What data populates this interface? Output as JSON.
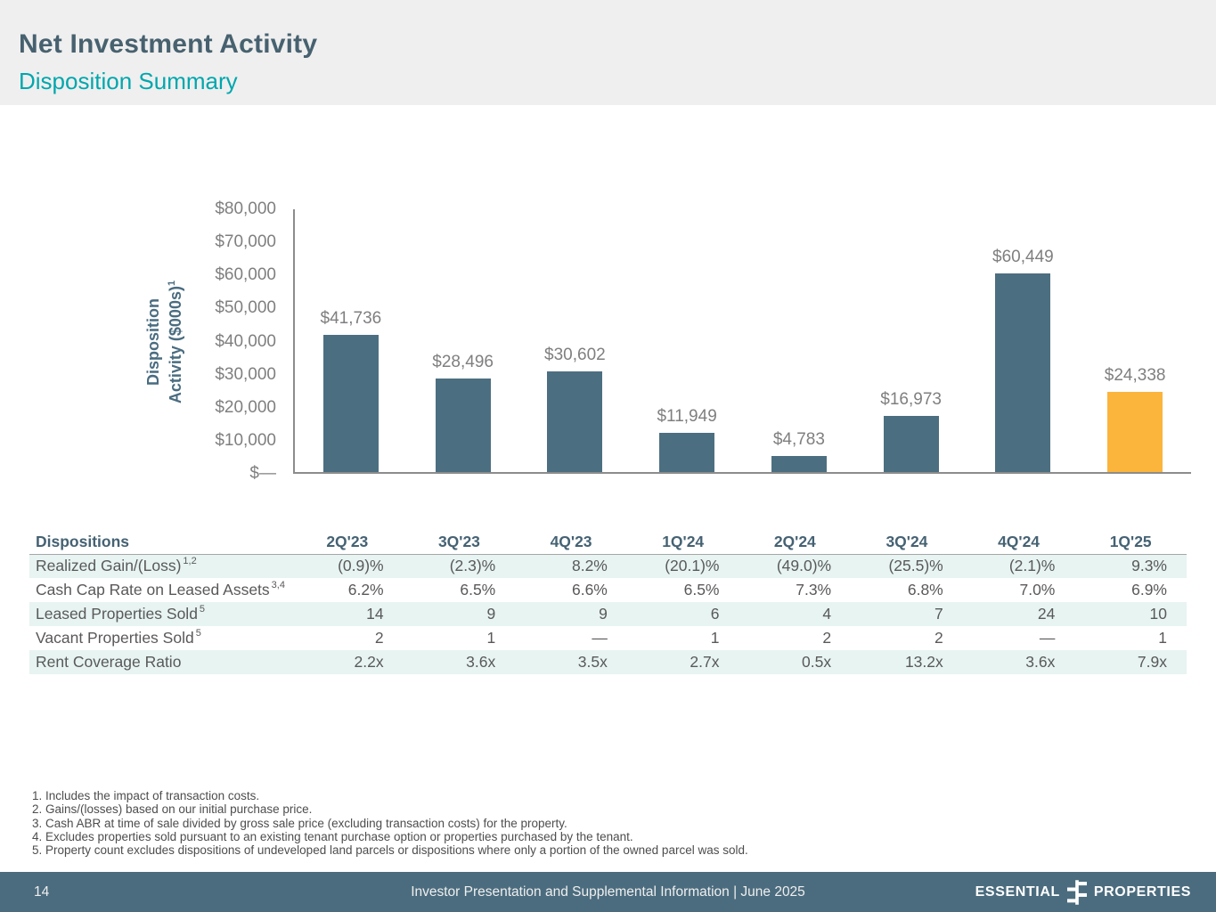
{
  "header": {
    "title": "Net Investment Activity",
    "subtitle": "Disposition Summary"
  },
  "chart_data": {
    "type": "bar",
    "ylabel": "Disposition Activity ($000s)",
    "ylabel_lines": [
      "Disposition",
      "Activity ($000s)"
    ],
    "ylabel_footnote_ref": "1",
    "categories": [
      "2Q'23",
      "3Q'23",
      "4Q'23",
      "1Q'24",
      "2Q'24",
      "3Q'24",
      "4Q'24",
      "1Q'25"
    ],
    "values": [
      41736,
      28496,
      30602,
      11949,
      4783,
      16973,
      60449,
      24338
    ],
    "value_labels": [
      "$41,736",
      "$28,496",
      "$30,602",
      "$11,949",
      "$4,783",
      "$16,973",
      "$60,449",
      "$24,338"
    ],
    "ylim": [
      0,
      80000
    ],
    "ytick_labels": [
      "$80,000",
      "$70,000",
      "$60,000",
      "$50,000",
      "$40,000",
      "$30,000",
      "$20,000",
      "$10,000",
      "$—"
    ],
    "grid": "off",
    "legend": "none",
    "bar_color": "#4C6E81",
    "highlight_bar_color": "#FBB43C",
    "highlight_index": 7
  },
  "table": {
    "title": "Dispositions",
    "columns": [
      "2Q'23",
      "3Q'23",
      "4Q'23",
      "1Q'24",
      "2Q'24",
      "3Q'24",
      "4Q'24",
      "1Q'25"
    ],
    "rows": [
      {
        "label": "Realized Gain/(Loss)",
        "superscript": "1,2",
        "values": [
          "(0.9)%",
          "(2.3)%",
          "8.2%",
          "(20.1)%",
          "(49.0)%",
          "(25.5)%",
          "(2.1)%",
          "9.3%"
        ]
      },
      {
        "label": "Cash Cap Rate on Leased Assets",
        "superscript": "3,4",
        "values": [
          "6.2%",
          "6.5%",
          "6.6%",
          "6.5%",
          "7.3%",
          "6.8%",
          "7.0%",
          "6.9%"
        ]
      },
      {
        "label": "Leased Properties Sold",
        "superscript": "5",
        "values": [
          "14",
          "9",
          "9",
          "6",
          "4",
          "7",
          "24",
          "10"
        ]
      },
      {
        "label": "Vacant Properties Sold",
        "superscript": "5",
        "values": [
          "2",
          "1",
          "—",
          "1",
          "2",
          "2",
          "—",
          "1"
        ]
      },
      {
        "label": "Rent Coverage Ratio",
        "superscript": "",
        "values": [
          "2.2x",
          "3.6x",
          "3.5x",
          "2.7x",
          "0.5x",
          "13.2x",
          "3.6x",
          "7.9x"
        ]
      }
    ]
  },
  "footnotes": [
    "1. Includes the impact of transaction costs.",
    "2. Gains/(losses) based on our initial purchase price.",
    "3. Cash ABR at time of sale divided by gross sale price (excluding transaction costs) for the property.",
    "4. Excludes properties sold pursuant to an existing tenant purchase option or properties purchased by the tenant.",
    "5. Property count excludes dispositions of undeveloped land parcels or dispositions where only a portion of the owned parcel was sold."
  ],
  "footer": {
    "page_number": "14",
    "center_text": "Investor Presentation and Supplemental Information | June 2025",
    "logo": {
      "left_word": "ESSENTIAL",
      "right_word": "PROPERTIES"
    }
  },
  "colors": {
    "header_band": "#EFEFEF",
    "title": "#47616F",
    "subtitle": "#00A7AD",
    "bar": "#4C6E81",
    "highlight_bar": "#FBB43C",
    "axis_text": "#7F7F7F",
    "table_stripe": "#E7F4F2",
    "footer_background": "#4B6C7E"
  }
}
